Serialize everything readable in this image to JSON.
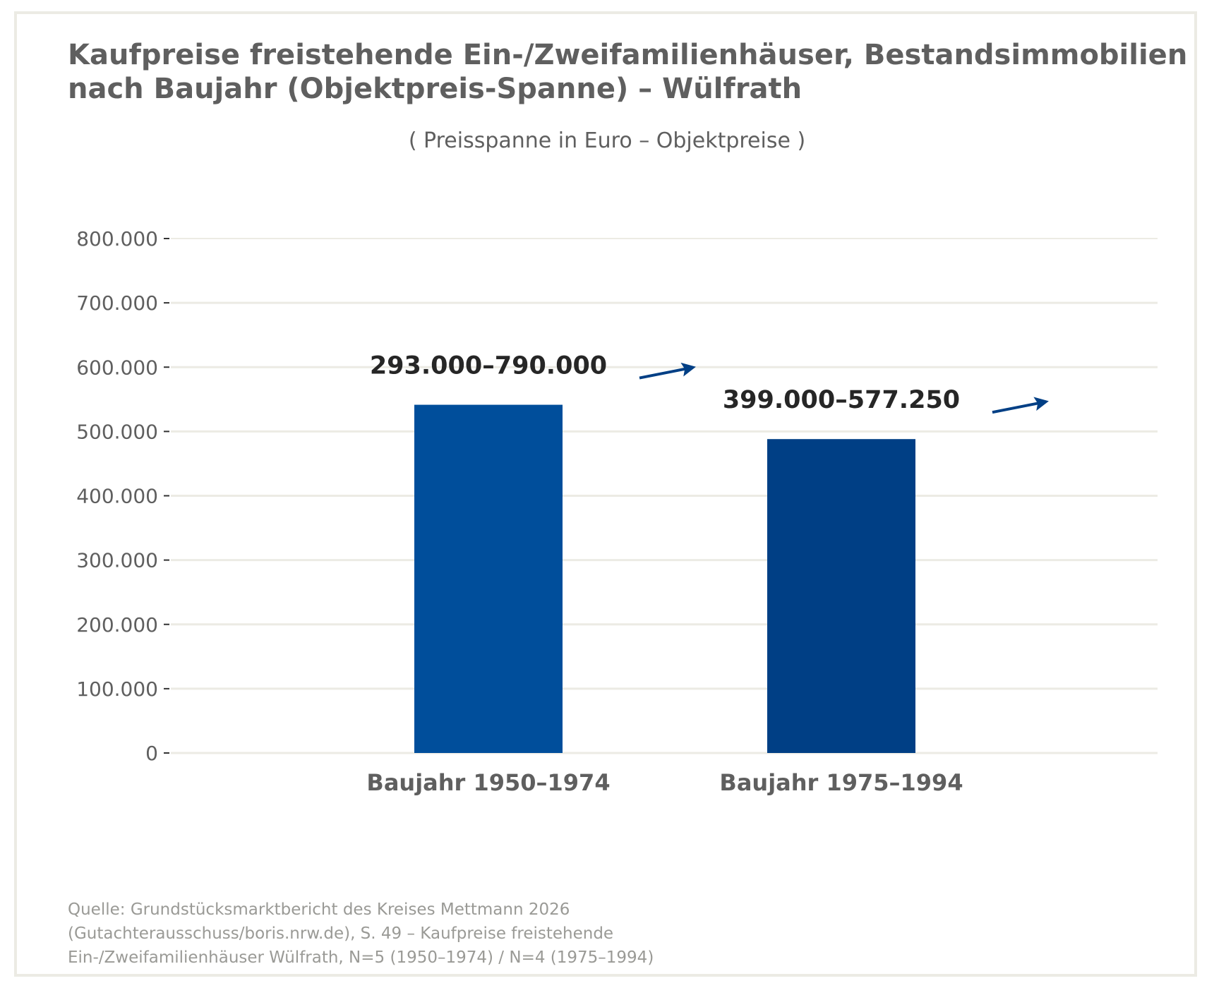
{
  "chart_data": {
    "type": "bar",
    "title_lines": [
      "Kaufpreise freistehende Ein-/Zweifamilienhäuser, Bestandsimmobilien",
      "nach Baujahr (Objektpreis-Spanne) – Wülfrath"
    ],
    "subtitle": "( Preisspanne in Euro – Objektpreise )",
    "categories": [
      "Baujahr 1950–1974",
      "Baujahr 1975–1994"
    ],
    "values": [
      541500,
      488125
    ],
    "range_labels": [
      "293.000–790.000",
      "399.000–577.250"
    ],
    "bar_colors": [
      "#004e9b",
      "#003f85"
    ],
    "ylim": [
      0,
      800000
    ],
    "yticks": [
      0,
      100000,
      200000,
      300000,
      400000,
      500000,
      600000,
      700000,
      800000
    ],
    "ytick_labels": [
      "0",
      "100.000",
      "200.000",
      "300.000",
      "400.000",
      "500.000",
      "600.000",
      "700.000",
      "800.000"
    ],
    "grid": true,
    "xlabel": "",
    "ylabel": "",
    "colors": {
      "text": "#5f5f5f",
      "annotation": "#262626",
      "arrow": "#003f85",
      "grid": "#ecebe4",
      "source": "#9a9a96"
    }
  },
  "source_lines": [
    "Quelle: Grundstücksmarktbericht des Kreises Mettmann 2026",
    "(Gutachterausschuss/boris.nrw.de), S. 49 – Kaufpreise freistehende",
    "Ein-/Zweifamilienhäuser Wülfrath, N=5 (1950–1974) / N=4 (1975–1994)"
  ]
}
